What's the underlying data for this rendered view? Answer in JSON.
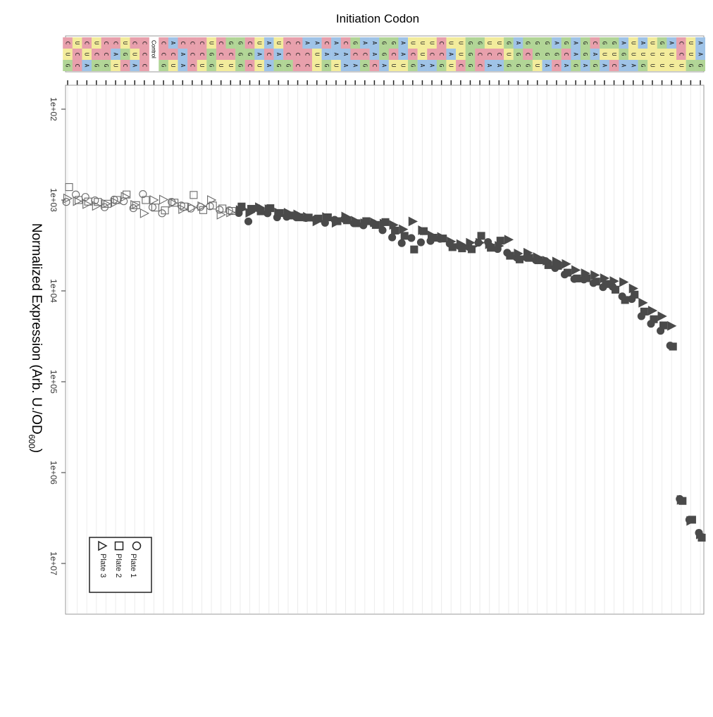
{
  "chart_data": {
    "type": "scatter",
    "title": "Initiation Codon",
    "ylabel": "Normalized Expression (Arb. U./OD",
    "ylabel_subscript": "600",
    "ylabel_close": ")",
    "y_scale": "log",
    "y_range": [
      100,
      10000000
    ],
    "y_ticks": [
      {
        "value": 100,
        "label": "1e+02"
      },
      {
        "value": 1000,
        "label": "1e+03"
      },
      {
        "value": 10000,
        "label": "1e+04"
      },
      {
        "value": 100000,
        "label": "1e+05"
      },
      {
        "value": 1000000,
        "label": "1e+06"
      },
      {
        "value": 10000000,
        "label": "1e+07"
      }
    ],
    "grid": "vertical lines per codon",
    "legend_position": "bottom-left",
    "codons": [
      "CUG",
      "UCC",
      "CUA",
      "UCG",
      "CCG",
      "CAU",
      "UGC",
      "CUA",
      "CCC",
      "Control",
      "CCG",
      "ACU",
      "CAA",
      "CCC",
      "CCU",
      "UGG",
      "CCU",
      "GCU",
      "GGG",
      "CGC",
      "UAU",
      "ACA",
      "UAG",
      "CCG",
      "CCC",
      "ACC",
      "AUU",
      "CAG",
      "AAU",
      "CAA",
      "GCA",
      "ACG",
      "AAC",
      "GGA",
      "GCU",
      "AAU",
      "UCG",
      "UUA",
      "UCA",
      "CCG",
      "UAU",
      "UUC",
      "GGG",
      "GCC",
      "UCA",
      "UCA",
      "GUG",
      "AGG",
      "GCG",
      "GGU",
      "GGA",
      "AGC",
      "GCA",
      "AAG",
      "GGA",
      "CAG",
      "GUA",
      "GUC",
      "AGA",
      "UUA",
      "AUG",
      "UUU",
      "GUU",
      "AUU",
      "CCU",
      "UUG",
      "AAG"
    ],
    "series": [
      {
        "name": "Plate 1",
        "marker": "circle",
        "y": [
          1050,
          870,
          925,
          1010,
          1200,
          990,
          1030,
          1230,
          860,
          1200,
          1400,
          1050,
          1150,
          1240,
          1190,
          1170,
          1280,
          1300,
          1390,
          1720,
          1230,
          1400,
          1550,
          1530,
          1550,
          1580,
          1620,
          1780,
          1650,
          1620,
          1800,
          1900,
          1800,
          2150,
          2580,
          2980,
          2620,
          2920,
          2820,
          2670,
          3020,
          3200,
          3280,
          2950,
          2900,
          3460,
          3800,
          4300,
          4300,
          4600,
          4700,
          5600,
          6600,
          7400,
          7500,
          8200,
          9100,
          9000,
          11500,
          12300,
          19000,
          23000,
          27500,
          40000,
          1950000,
          3300000,
          4600000
        ]
      },
      {
        "name": "Plate 2",
        "marker": "square",
        "y": [
          720,
          1000,
          1040,
          1050,
          1100,
          1000,
          870,
          1140,
          1000,
          1210,
          1300,
          1070,
          1180,
          880,
          1290,
          1150,
          1240,
          1320,
          1180,
          1250,
          1330,
          1230,
          1390,
          1480,
          1550,
          1560,
          1600,
          1550,
          1710,
          1670,
          1800,
          1710,
          1880,
          1750,
          2170,
          2480,
          3500,
          2200,
          2600,
          2650,
          3300,
          3400,
          3480,
          2480,
          3350,
          2800,
          4100,
          4500,
          4330,
          4600,
          5200,
          5300,
          6300,
          7300,
          7250,
          7900,
          8400,
          9700,
          12600,
          11000,
          16900,
          20500,
          24000,
          41000,
          2050000,
          3300000,
          5200000
        ]
      },
      {
        "name": "Plate 3",
        "marker": "triangle",
        "y": [
          960,
          1030,
          1110,
          1160,
          1100,
          1060,
          920,
          1130,
          1400,
          1000,
          990,
          1080,
          1260,
          1210,
          1170,
          1000,
          1450,
          1370,
          1290,
          1380,
          1200,
          1260,
          1370,
          1380,
          1440,
          1530,
          1720,
          1540,
          1780,
          1520,
          1690,
          1800,
          1760,
          1820,
          1880,
          2100,
          1720,
          2150,
          2450,
          2550,
          2860,
          3050,
          2950,
          2950,
          3070,
          3200,
          2730,
          3880,
          3800,
          4250,
          4650,
          4750,
          5050,
          5900,
          6400,
          6700,
          7250,
          7800,
          8000,
          9400,
          13500,
          16500,
          19000,
          24300,
          2000000,
          3400000,
          4800000
        ]
      }
    ]
  },
  "legend": {
    "items": [
      {
        "label": "Plate 1",
        "marker": "circle"
      },
      {
        "label": "Plate 2",
        "marker": "square"
      },
      {
        "label": "Plate 3",
        "marker": "triangle"
      }
    ]
  },
  "colors": {
    "A": "#9fc3e7",
    "C": "#e8a0ac",
    "G": "#b1d596",
    "U": "#f3ec9c",
    "control_marker": "#ffffff",
    "marker_dark": "#4a4a4a",
    "grid": "#ececec"
  }
}
